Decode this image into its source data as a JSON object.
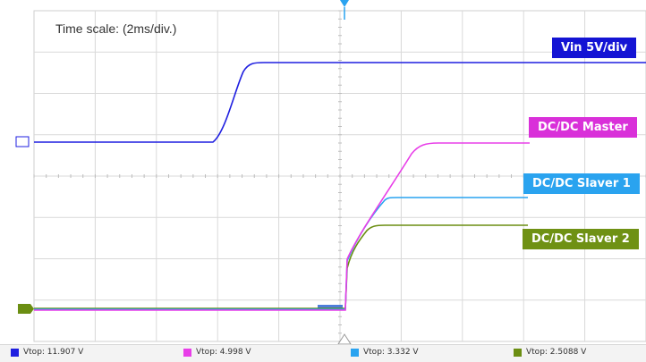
{
  "title": "Time scale: (2ms/div.)",
  "colors": {
    "vin": "#1f1fe0",
    "master": "#e83ee8",
    "slaver1": "#29a3f0",
    "slaver2": "#6b8e12",
    "grid": "#d9d9d9"
  },
  "channels": [
    {
      "key": "vin",
      "label": "Vin 5V/div",
      "color": "#1414d4"
    },
    {
      "key": "master",
      "label": "DC/DC Master",
      "color": "#d930d9"
    },
    {
      "key": "slaver1",
      "label": "DC/DC Slaver 1",
      "color": "#2aa3ef"
    },
    {
      "key": "slaver2",
      "label": "DC/DC Slaver 2",
      "color": "#6f9114"
    }
  ],
  "measurements": [
    {
      "label": "Vtop: 11.907 V",
      "color": "#1f1fe0"
    },
    {
      "label": "Vtop: 4.998 V",
      "color": "#e83ee8"
    },
    {
      "label": "Vtop: 3.332 V",
      "color": "#29a3f0"
    },
    {
      "label": "Vtop: 2.5088 V",
      "color": "#6b8e12"
    }
  ]
}
